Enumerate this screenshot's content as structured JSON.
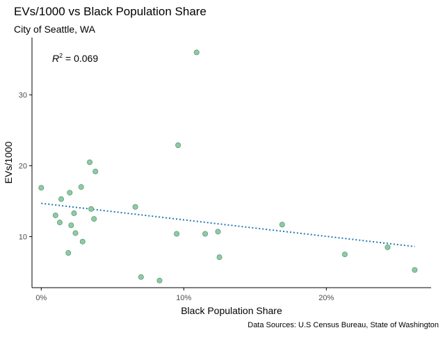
{
  "chart_data": {
    "type": "scatter",
    "title": "EVs/1000 vs Black Population Share",
    "subtitle": "City of Seattle, WA",
    "xlabel": "Black Population Share",
    "ylabel": "EVs/1000",
    "caption": "Data Sources: U.S Census Bureau, State of Washington",
    "annotation": {
      "lhs": "R",
      "sup": "2",
      "rhs": " = 0.069"
    },
    "xlim": [
      -0.0065,
      0.2735
    ],
    "ylim": [
      2.8,
      38.1
    ],
    "x_ticks": [
      0,
      0.1,
      0.2
    ],
    "x_tick_labels": [
      "0%",
      "10%",
      "20%"
    ],
    "y_ticks": [
      10,
      20,
      30
    ],
    "y_tick_labels": [
      "10",
      "20",
      "30"
    ],
    "grid": false,
    "points": [
      {
        "x": 0.0,
        "y": 16.9
      },
      {
        "x": 0.01,
        "y": 13.0
      },
      {
        "x": 0.013,
        "y": 12.0
      },
      {
        "x": 0.014,
        "y": 15.3
      },
      {
        "x": 0.019,
        "y": 7.7
      },
      {
        "x": 0.02,
        "y": 16.2
      },
      {
        "x": 0.021,
        "y": 11.6
      },
      {
        "x": 0.023,
        "y": 13.3
      },
      {
        "x": 0.024,
        "y": 10.5
      },
      {
        "x": 0.028,
        "y": 17.0
      },
      {
        "x": 0.029,
        "y": 9.3
      },
      {
        "x": 0.034,
        "y": 20.5
      },
      {
        "x": 0.035,
        "y": 13.9
      },
      {
        "x": 0.037,
        "y": 12.5
      },
      {
        "x": 0.038,
        "y": 19.2
      },
      {
        "x": 0.066,
        "y": 14.2
      },
      {
        "x": 0.07,
        "y": 4.3
      },
      {
        "x": 0.083,
        "y": 3.8
      },
      {
        "x": 0.095,
        "y": 10.4
      },
      {
        "x": 0.096,
        "y": 22.9
      },
      {
        "x": 0.109,
        "y": 36.0
      },
      {
        "x": 0.115,
        "y": 10.4
      },
      {
        "x": 0.124,
        "y": 10.7
      },
      {
        "x": 0.125,
        "y": 7.1
      },
      {
        "x": 0.169,
        "y": 11.7
      },
      {
        "x": 0.213,
        "y": 7.5
      },
      {
        "x": 0.243,
        "y": 8.5
      },
      {
        "x": 0.262,
        "y": 5.3
      }
    ],
    "trendline": {
      "style": "dotted",
      "x": [
        0.0,
        0.262
      ],
      "y": [
        14.7,
        8.6
      ]
    },
    "colors": {
      "points_fill": "#8fcaa6",
      "points_stroke": "#5a9c73",
      "trendline": "#1f77b4",
      "axis": "#000000",
      "tick_text": "#4d4d4d"
    }
  }
}
